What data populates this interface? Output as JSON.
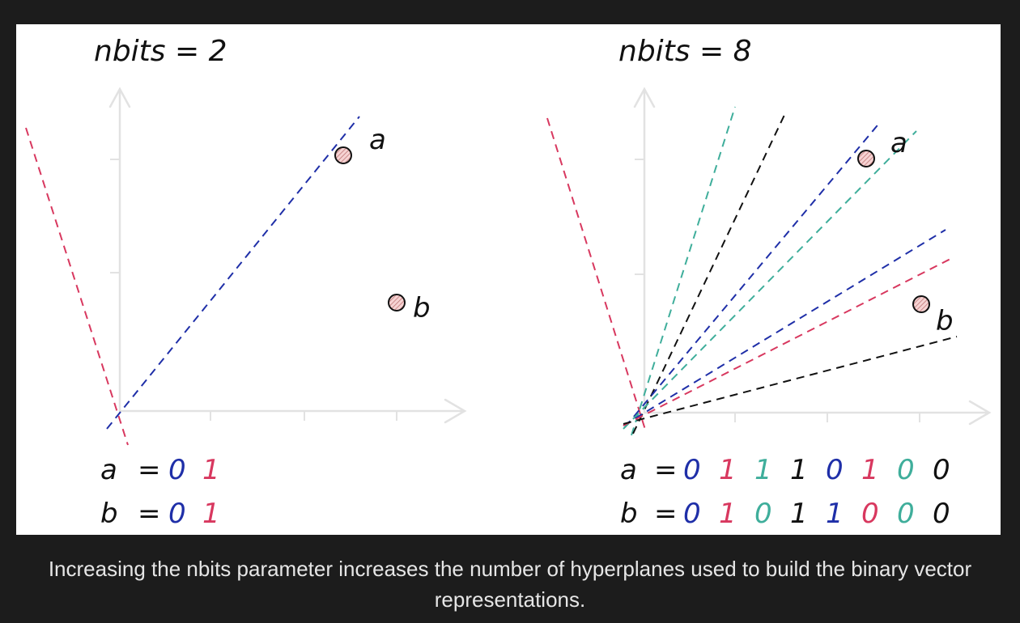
{
  "colors": {
    "page_bg": "#1c1c1c",
    "figure_bg": "#ffffff",
    "blue": "#1f2fa8",
    "pink": "#d8385f",
    "teal": "#3fae9b",
    "black": "#111111",
    "point_fill": "#f2c4c4"
  },
  "left": {
    "title": "nbits = 2",
    "point_a_label": "a",
    "point_b_label": "b",
    "hyperplanes": [
      {
        "name": "pink",
        "color": "#d8385f"
      },
      {
        "name": "blue",
        "color": "#1f2fa8"
      }
    ],
    "code_a": {
      "label": "a",
      "eq": "=",
      "bits": [
        {
          "v": "0",
          "color": "#1f2fa8"
        },
        {
          "v": "1",
          "color": "#d8385f"
        }
      ]
    },
    "code_b": {
      "label": "b",
      "eq": "=",
      "bits": [
        {
          "v": "0",
          "color": "#1f2fa8"
        },
        {
          "v": "1",
          "color": "#d8385f"
        }
      ]
    }
  },
  "right": {
    "title": "nbits = 8",
    "point_a_label": "a",
    "point_b_label": "b",
    "hyperplanes": [
      {
        "name": "pink-steep",
        "color": "#d8385f"
      },
      {
        "name": "teal-1",
        "color": "#3fae9b"
      },
      {
        "name": "black-1",
        "color": "#111111"
      },
      {
        "name": "blue-1",
        "color": "#1f2fa8"
      },
      {
        "name": "teal-2",
        "color": "#3fae9b"
      },
      {
        "name": "blue-2",
        "color": "#1f2fa8"
      },
      {
        "name": "pink-2",
        "color": "#d8385f"
      },
      {
        "name": "black-2",
        "color": "#111111"
      }
    ],
    "code_a": {
      "label": "a",
      "eq": "=",
      "bits": [
        {
          "v": "0",
          "color": "#1f2fa8"
        },
        {
          "v": "1",
          "color": "#d8385f"
        },
        {
          "v": "1",
          "color": "#3fae9b"
        },
        {
          "v": "1",
          "color": "#111111"
        },
        {
          "v": "0",
          "color": "#1f2fa8"
        },
        {
          "v": "1",
          "color": "#d8385f"
        },
        {
          "v": "0",
          "color": "#3fae9b"
        },
        {
          "v": "0",
          "color": "#111111"
        }
      ]
    },
    "code_b": {
      "label": "b",
      "eq": "=",
      "bits": [
        {
          "v": "0",
          "color": "#1f2fa8"
        },
        {
          "v": "1",
          "color": "#d8385f"
        },
        {
          "v": "0",
          "color": "#3fae9b"
        },
        {
          "v": "1",
          "color": "#111111"
        },
        {
          "v": "1",
          "color": "#1f2fa8"
        },
        {
          "v": "0",
          "color": "#d8385f"
        },
        {
          "v": "0",
          "color": "#3fae9b"
        },
        {
          "v": "0",
          "color": "#111111"
        }
      ]
    }
  },
  "caption": "Increasing the nbits parameter increases the number of hyperplanes used to build the binary vector representations."
}
